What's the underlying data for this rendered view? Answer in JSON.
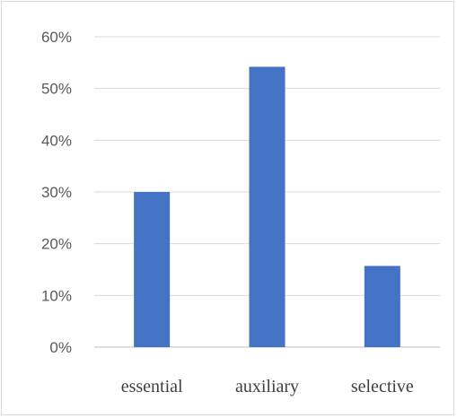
{
  "chart_data": {
    "type": "bar",
    "title": "",
    "xlabel": "",
    "ylabel": "",
    "categories": [
      "essential",
      "auxiliary",
      "selective"
    ],
    "values": [
      0.3,
      0.542,
      0.157
    ],
    "ylim": [
      0,
      0.6
    ],
    "yticks": [
      "0%",
      "10%",
      "20%",
      "30%",
      "40%",
      "50%",
      "60%"
    ],
    "grid": true,
    "legend": "none",
    "colors": {
      "bar": "#4472C4",
      "grid": "#d9d9d9",
      "axis": "#bfbfbf"
    }
  }
}
